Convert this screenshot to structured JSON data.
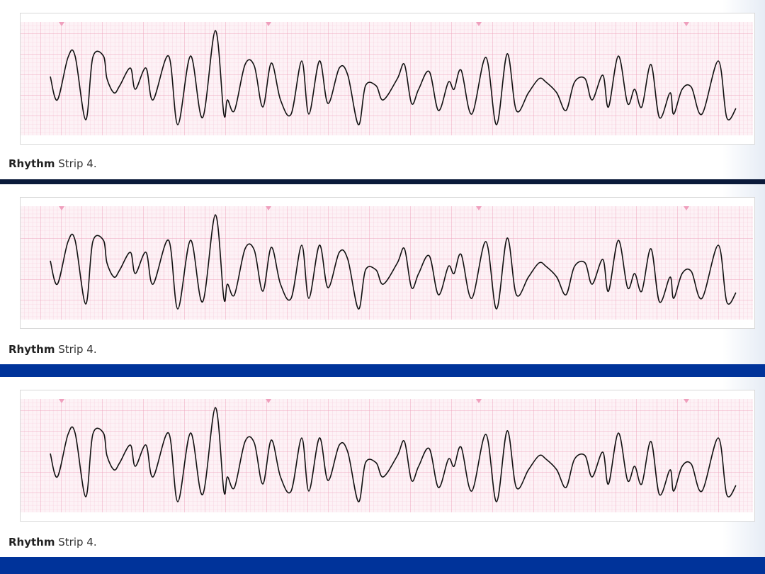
{
  "strips": [
    {
      "caption_bold": "Rhythm",
      "caption_rest": "Strip 4."
    },
    {
      "caption_bold": "Rhythm",
      "caption_rest": "Strip 4."
    },
    {
      "caption_bold": "Rhythm",
      "caption_rest": "Strip 4."
    }
  ],
  "colors": {
    "grid_minor": "#f6c6d6",
    "grid_major": "#eea5be",
    "trace": "#111111",
    "band_dark": "#0b1a3a",
    "band_blue": "#00339a"
  }
}
